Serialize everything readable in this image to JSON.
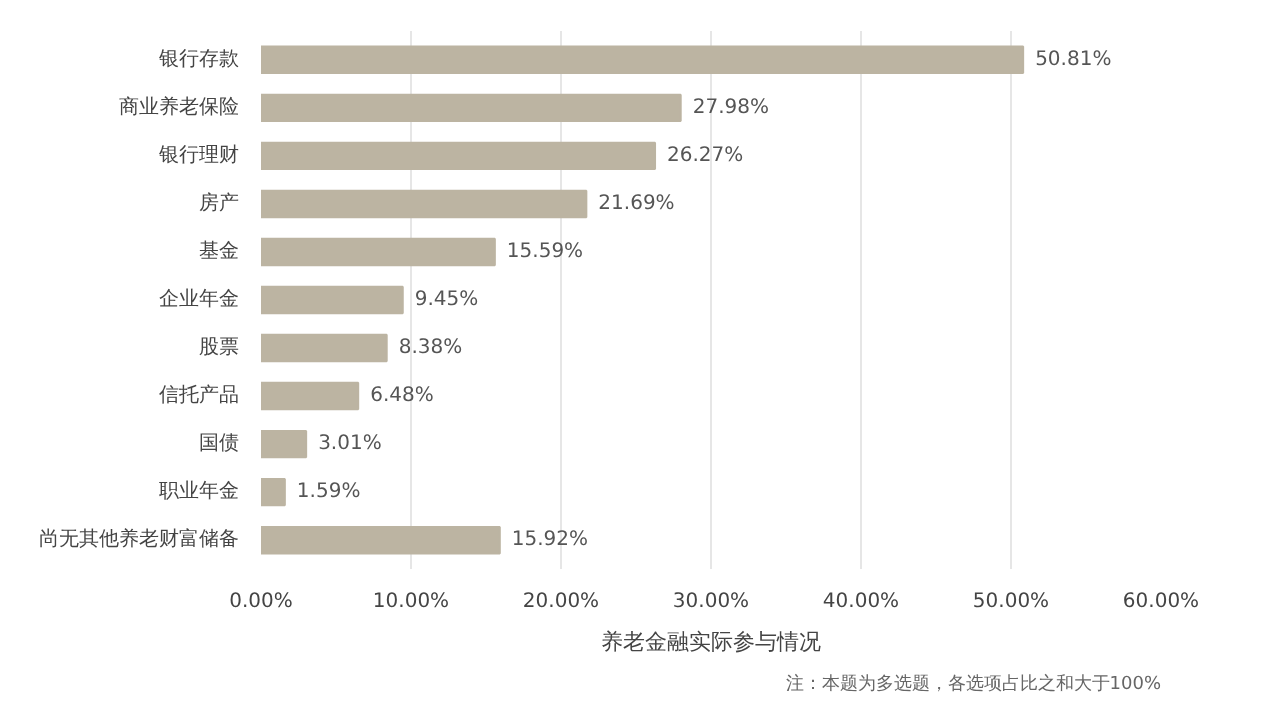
{
  "chart_data": {
    "type": "bar",
    "orientation": "horizontal",
    "xlabel": "养老金融实际参与情况",
    "categories": [
      "银行存款",
      "商业养老保险",
      "银行理财",
      "房产",
      "基金",
      "企业年金",
      "股票",
      "信托产品",
      "国债",
      "职业年金",
      "尚无其他养老财富储备"
    ],
    "values": [
      50.81,
      27.98,
      26.27,
      21.69,
      15.59,
      9.45,
      8.38,
      6.48,
      3.01,
      1.59,
      15.92
    ],
    "value_labels": [
      "50.81%",
      "27.98%",
      "26.27%",
      "21.69%",
      "15.59%",
      "9.45%",
      "8.38%",
      "6.48%",
      "3.01%",
      "1.59%",
      "15.92%"
    ],
    "color": "#bcb4a2",
    "xlim": [
      0,
      60
    ],
    "xticks": [
      {
        "value": 0,
        "label": "0.00%"
      },
      {
        "value": 10,
        "label": "10.00%"
      },
      {
        "value": 20,
        "label": "20.00%"
      },
      {
        "value": 30,
        "label": "30.00%"
      },
      {
        "value": 40,
        "label": "40.00%"
      },
      {
        "value": 50,
        "label": "50.00%"
      },
      {
        "value": 60,
        "label": "60.00%"
      }
    ],
    "grid": "x",
    "annotations": [
      "注：本题为多选题，各选项占比之和大于100%"
    ]
  }
}
